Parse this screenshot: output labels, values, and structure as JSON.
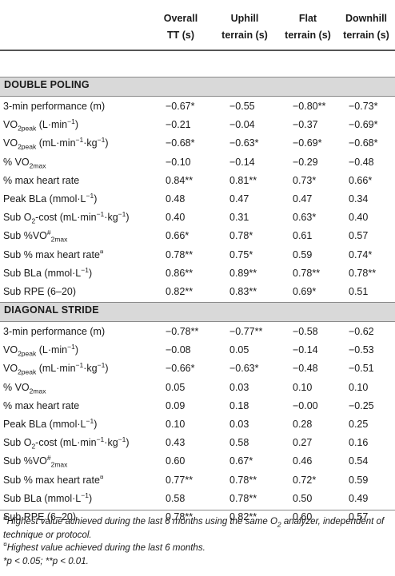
{
  "header": {
    "col1_line1": "Overall",
    "col1_line2": "TT (s)",
    "col2_line1": "Uphill",
    "col2_line2": "terrain (s)",
    "col3_line1": "Flat",
    "col3_line2": "terrain (s)",
    "col4_line1": "Downhill",
    "col4_line2": "terrain (s)"
  },
  "sections": {
    "double_poling": "DOUBLE POLING",
    "diagonal_stride": "DIAGONAL STRIDE"
  },
  "dp": {
    "r1": {
      "label": "3-min performance (m)",
      "v": [
        "−0.67*",
        "−0.55",
        "−0.80**",
        "−0.73*"
      ]
    },
    "r2": {
      "label_main": "VO",
      "label_sub": "2peak",
      "label_rest": " (L·min",
      "label_sup": "−1",
      "label_end": ")",
      "v": [
        "−0.21",
        "−0.04",
        "−0.37",
        "−0.69*"
      ]
    },
    "r3": {
      "label_main": "VO",
      "label_sub": "2peak",
      "label_rest": " (mL·min",
      "label_sup": "−1",
      "label_mid": "·kg",
      "label_sup2": "−1",
      "label_end": ")",
      "v": [
        "−0.68*",
        "−0.63*",
        "−0.69*",
        "−0.68*"
      ]
    },
    "r4": {
      "label_main": "% VO",
      "label_sub": "2max",
      "v": [
        "−0.10",
        "−0.14",
        "−0.29",
        "−0.48"
      ]
    },
    "r5": {
      "label": "% max heart rate",
      "v": [
        "0.84**",
        "0.81**",
        "0.73*",
        "0.66*"
      ]
    },
    "r6": {
      "label_main": "Peak BLa (mmol·L",
      "label_sup": "−1",
      "label_end": ")",
      "v": [
        "0.48",
        "0.47",
        "0.47",
        "0.34"
      ]
    },
    "r7": {
      "label_main": "Sub O",
      "label_sub": "2",
      "label_rest": "-cost (mL·min",
      "label_sup": "−1",
      "label_mid": "·kg",
      "label_sup2": "−1",
      "label_end": ")",
      "v": [
        "0.40",
        "0.31",
        "0.63*",
        "0.40"
      ]
    },
    "r8": {
      "label_main": "Sub %VO",
      "label_sup": "#",
      "label_sub": "2max",
      "v": [
        "0.66*",
        "0.78*",
        "0.61",
        "0.57"
      ]
    },
    "r9": {
      "label_main": "Sub % max heart rate",
      "label_sup": "¤",
      "v": [
        "0.78**",
        "0.75*",
        "0.59",
        "0.74*"
      ]
    },
    "r10": {
      "label_main": "Sub BLa (mmol·L",
      "label_sup": "−1",
      "label_end": ")",
      "v": [
        "0.86**",
        "0.89**",
        "0.78**",
        "0.78**"
      ]
    },
    "r11": {
      "label": "Sub RPE (6–20)",
      "v": [
        "0.82**",
        "0.83**",
        "0.69*",
        "0.51"
      ]
    }
  },
  "ds": {
    "r1": {
      "label": "3-min performance (m)",
      "v": [
        "−0.78**",
        "−0.77**",
        "−0.58",
        "−0.62"
      ]
    },
    "r2": {
      "label_main": "VO",
      "label_sub": "2peak",
      "label_rest": " (L·min",
      "label_sup": "−1",
      "label_end": ")",
      "v": [
        "−0.08",
        "0.05",
        "−0.14",
        "−0.53"
      ]
    },
    "r3": {
      "label_main": "VO",
      "label_sub": "2peak",
      "label_rest": " (mL·min",
      "label_sup": "−1",
      "label_mid": "·kg",
      "label_sup2": "−1",
      "label_end": ")",
      "v": [
        "−0.66*",
        "−0.63*",
        "−0.48",
        "−0.51"
      ]
    },
    "r4": {
      "label_main": "% VO",
      "label_sub": "2max",
      "v": [
        "0.05",
        "0.03",
        "0.10",
        "0.10"
      ]
    },
    "r5": {
      "label": "% max heart rate",
      "v": [
        "0.09",
        "0.18",
        "−0.00",
        "−0.25"
      ]
    },
    "r6": {
      "label_main": "Peak BLa (mmol·L",
      "label_sup": "−1",
      "label_end": ")",
      "v": [
        "0.10",
        "0.03",
        "0.28",
        "0.25"
      ]
    },
    "r7": {
      "label_main": "Sub O",
      "label_sub": "2",
      "label_rest": "-cost (mL·min",
      "label_sup": "−1",
      "label_mid": "·kg",
      "label_sup2": "−1",
      "label_end": ")",
      "v": [
        "0.43",
        "0.58",
        "0.27",
        "0.16"
      ]
    },
    "r8": {
      "label_main": "Sub %VO",
      "label_sup": "#",
      "label_sub": "2max",
      "v": [
        "0.60",
        "0.67*",
        "0.46",
        "0.54"
      ]
    },
    "r9": {
      "label_main": "Sub % max heart rate",
      "label_sup": "¤",
      "v": [
        "0.77**",
        "0.78**",
        "0.72*",
        "0.59"
      ]
    },
    "r10": {
      "label_main": "Sub BLa (mmol·L",
      "label_sup": "−1",
      "label_end": ")",
      "v": [
        "0.58",
        "0.78**",
        "0.50",
        "0.49"
      ]
    },
    "r11": {
      "label": "Sub RPE (6–20)",
      "v": [
        "0.78**",
        "0.82**",
        "0.60",
        "0.57"
      ]
    }
  },
  "notes": {
    "n1_sup": "#",
    "n1_a": "Highest value achieved during the last 6 months using the same O",
    "n1_sub": "2",
    "n1_b": " analyzer, independent of technique or protocol.",
    "n2_sup": "¤",
    "n2": "Highest value achieved during the last 6 months.",
    "n3": "*p < 0.05; **p < 0.01."
  }
}
